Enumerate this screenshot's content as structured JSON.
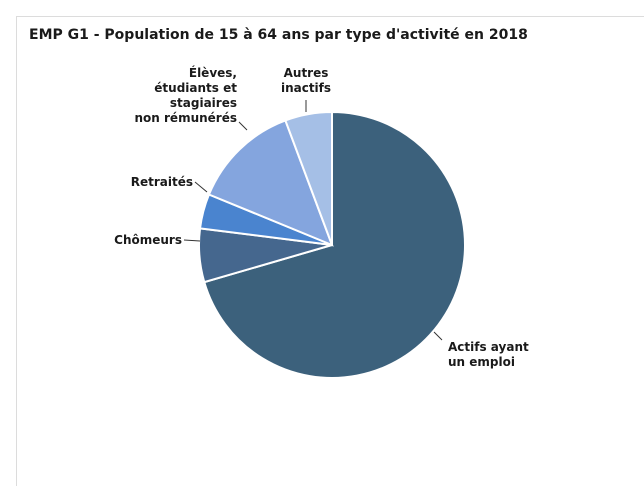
{
  "chart_data": {
    "type": "pie",
    "title": "EMP G1 - Population de 15 à 64 ans par type d'activité en 2018",
    "slices": [
      {
        "label": "Actifs ayant un emploi",
        "value": 70.5,
        "color": "#3c617c"
      },
      {
        "label": "Chômeurs",
        "value": 6.5,
        "color": "#45678e"
      },
      {
        "label": "Retraités",
        "value": 4.2,
        "color": "#4a84cf"
      },
      {
        "label": "Élèves, étudiants et stagiaires non rémunérés",
        "value": 13.1,
        "color": "#84a5de"
      },
      {
        "label": "Autres inactifs",
        "value": 5.7,
        "color": "#a5bfe6"
      }
    ]
  }
}
